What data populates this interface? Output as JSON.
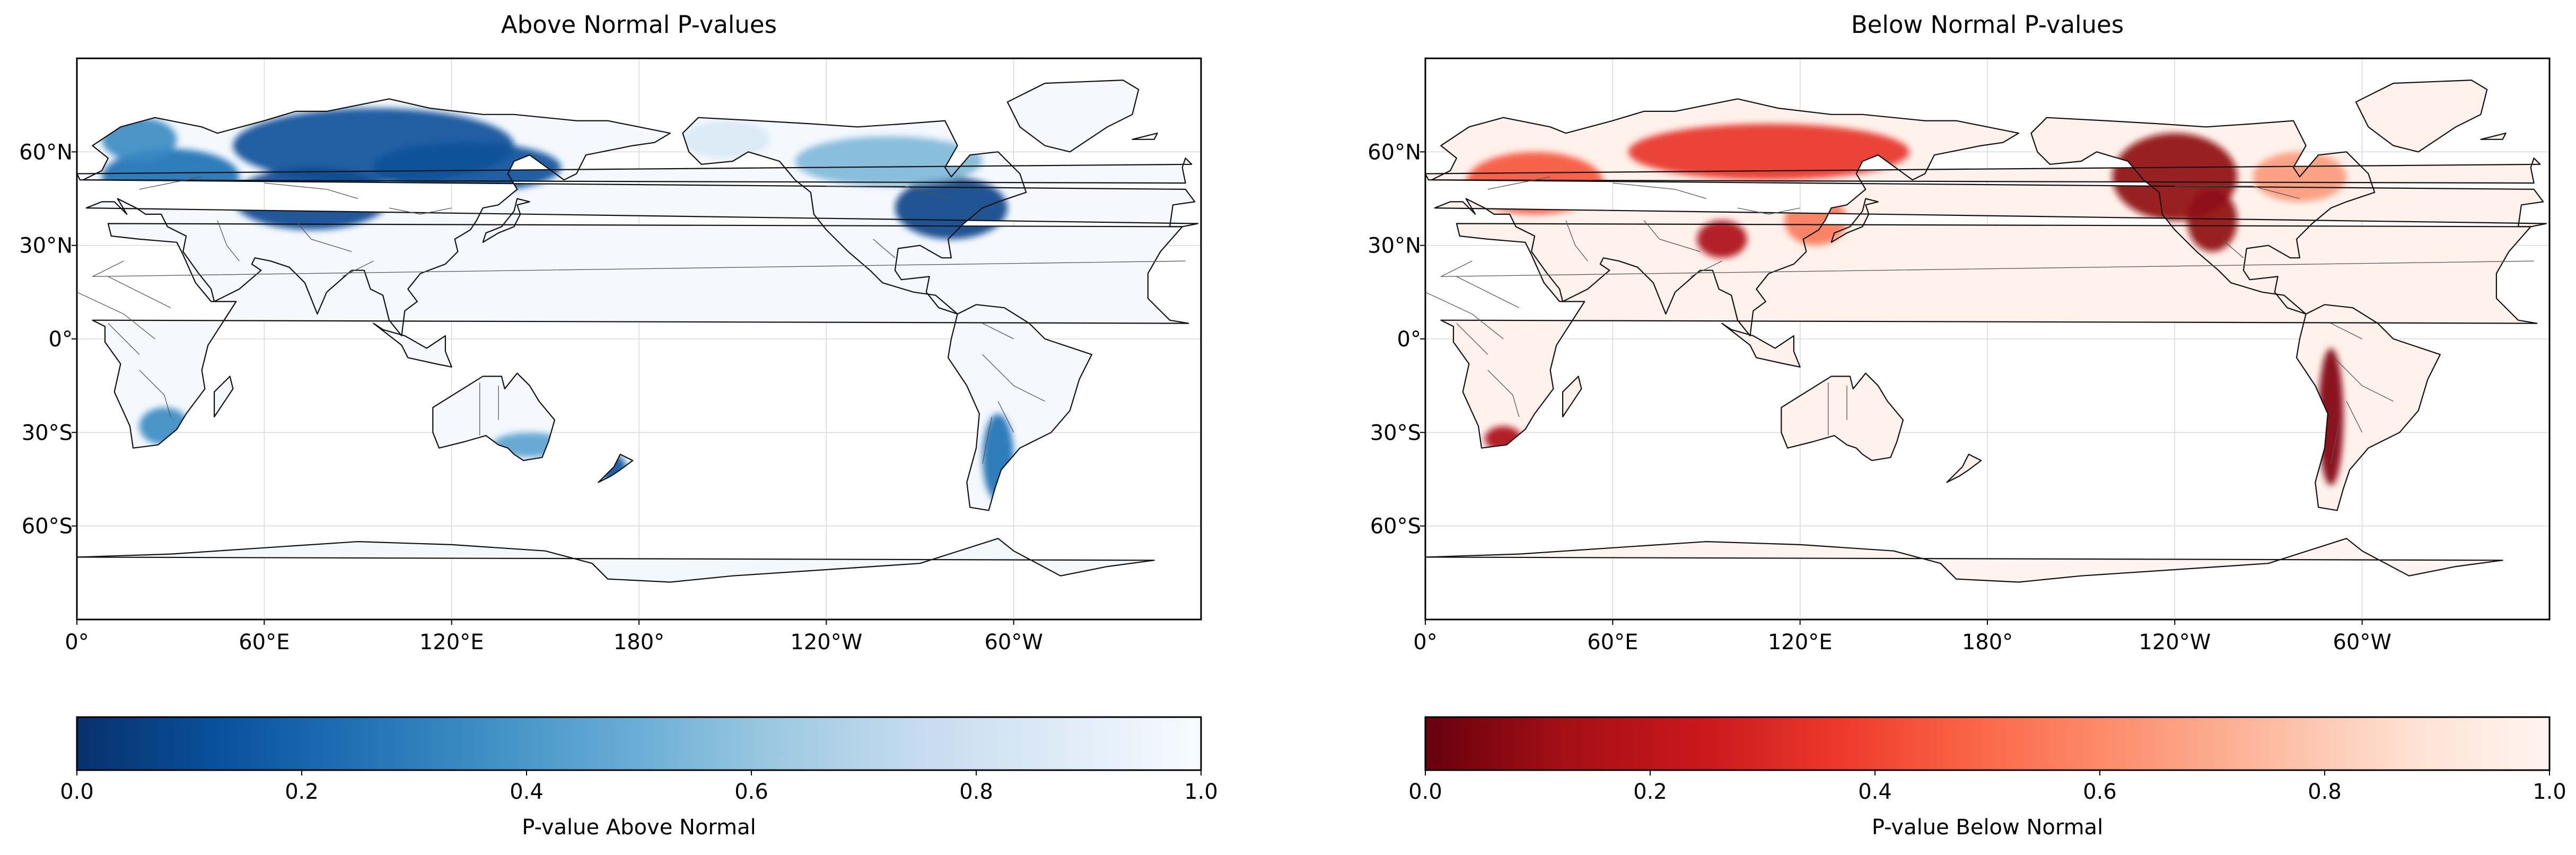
{
  "panels": [
    {
      "id": "above",
      "title": "Above Normal P-values",
      "colorbar_label": "P-value Above Normal",
      "colormap": [
        "#08306b",
        "#08519c",
        "#2171b5",
        "#4292c6",
        "#6baed6",
        "#9ecae1",
        "#c6dbef",
        "#deebf7",
        "#f7fbff"
      ],
      "land_default": "#f5f9fe",
      "antarctica_color": "#f3f8fd",
      "regions": [
        {
          "name": "Siberia",
          "p": 0.12
        },
        {
          "name": "Central Asia",
          "p": 0.1
        },
        {
          "name": "Europe",
          "p": 0.25
        },
        {
          "name": "Scandinavia",
          "p": 0.35
        },
        {
          "name": "Eastern North America",
          "p": 0.08
        },
        {
          "name": "Canada",
          "p": 0.55
        },
        {
          "name": "Alaska",
          "p": 0.85
        },
        {
          "name": "Southern South America",
          "p": 0.25
        },
        {
          "name": "New Zealand",
          "p": 0.15
        },
        {
          "name": "Southern Africa",
          "p": 0.35
        },
        {
          "name": "Southern Australia",
          "p": 0.45
        }
      ]
    },
    {
      "id": "below",
      "title": "Below Normal P-values",
      "colorbar_label": "P-value Below Normal",
      "colormap": [
        "#67000d",
        "#a50f15",
        "#cb181d",
        "#ef3b2c",
        "#fb6a4a",
        "#fc9272",
        "#fcbba1",
        "#fee0d2",
        "#fff5f0"
      ],
      "land_default": "#fff2ec",
      "antarctica_color": "#fff4ef",
      "regions": [
        {
          "name": "Western North America",
          "p": 0.08
        },
        {
          "name": "Siberia",
          "p": 0.35
        },
        {
          "name": "Europe",
          "p": 0.45
        },
        {
          "name": "Andes",
          "p": 0.05
        },
        {
          "name": "Tibet",
          "p": 0.15
        },
        {
          "name": "South Africa",
          "p": 0.15
        },
        {
          "name": "East Asia",
          "p": 0.55
        },
        {
          "name": "Canada East",
          "p": 0.65
        }
      ]
    }
  ],
  "map": {
    "projection": "PlateCarree",
    "central_longitude": 180,
    "x_ticks": [
      "0°",
      "60°E",
      "120°E",
      "180°",
      "120°W",
      "60°W"
    ],
    "y_ticks": [
      "60°N",
      "30°N",
      "0°",
      "30°S",
      "60°S"
    ],
    "lat_range": [
      -90,
      90
    ],
    "gridlines": true
  },
  "colorbar": {
    "ticks": [
      "0.0",
      "0.2",
      "0.4",
      "0.6",
      "0.8",
      "1.0"
    ],
    "range": [
      0,
      1
    ],
    "orientation": "horizontal"
  }
}
